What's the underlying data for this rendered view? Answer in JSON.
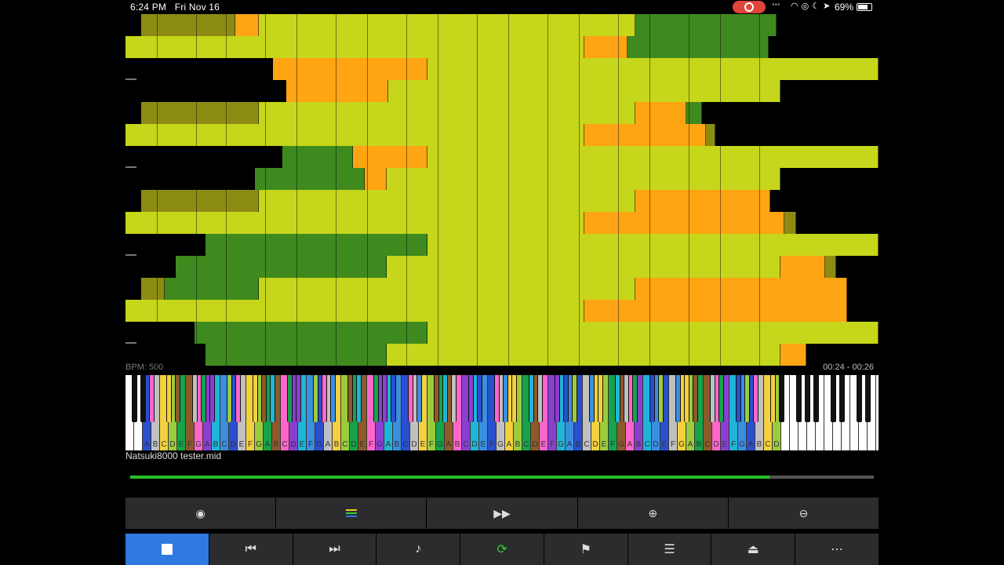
{
  "status_bar": {
    "time": "6:24 PM",
    "date": "Fri Nov 16",
    "battery_percent": "69%",
    "icons": [
      "screen-record-icon",
      "wifi-icon",
      "lock-rotation-icon",
      "moon-icon",
      "location-icon",
      "battery-icon"
    ]
  },
  "roll": {
    "bpm_label": "BPM: 500",
    "time_range": "00:24 - 00:26"
  },
  "piano": {
    "note_letters": [
      "C",
      "D",
      "E",
      "F",
      "G",
      "A",
      "B"
    ],
    "highlight_colors": [
      "#1fb5d8",
      "#3a8fe0",
      "#2a4fd0",
      "#c0c0c0",
      "#f4d03f",
      "#9ccc3c",
      "#16a34a",
      "#8d5a2a",
      "#ff66cc",
      "#8b3fd0"
    ]
  },
  "file": {
    "name": "Natsuki8000 tester.mid"
  },
  "playback": {
    "progress": 0.86
  },
  "toolbar_top": {
    "buttons": [
      {
        "name": "view-eye-button",
        "icon": "eye-icon",
        "glyph": "◉"
      },
      {
        "name": "tracks-color-button",
        "icon": "colored-bars-icon",
        "glyph": ""
      },
      {
        "name": "fast-forward-button",
        "icon": "fast-forward-icon",
        "glyph": "⏩"
      },
      {
        "name": "zoom-in-button",
        "icon": "zoom-in-icon",
        "glyph": "⊕"
      },
      {
        "name": "zoom-out-button",
        "icon": "zoom-out-icon",
        "glyph": "⊖"
      }
    ]
  },
  "toolbar_bottom": {
    "buttons": [
      {
        "name": "stop-button",
        "icon": "stop-icon",
        "glyph": ""
      },
      {
        "name": "previous-button",
        "icon": "skip-back-icon",
        "glyph": "⏮"
      },
      {
        "name": "next-button",
        "icon": "skip-forward-icon",
        "glyph": "⏭"
      },
      {
        "name": "metronome-button",
        "icon": "metronome-icon",
        "glyph": "♪"
      },
      {
        "name": "loop-button",
        "icon": "loop-icon",
        "glyph": "⟳"
      },
      {
        "name": "marker-flag-button",
        "icon": "flag-icon",
        "glyph": "⚑"
      },
      {
        "name": "track-list-button",
        "icon": "list-icon",
        "glyph": "☰"
      },
      {
        "name": "eject-button",
        "icon": "eject-icon",
        "glyph": "⏏"
      },
      {
        "name": "more-button",
        "icon": "more-icon",
        "glyph": "⋯"
      }
    ]
  },
  "colors": {
    "note_yellow": "#c6d61a",
    "note_green": "#3f8a1e",
    "note_orange": "#ffa412",
    "note_olive": "#8c8c14",
    "progress_green": "#27c02a",
    "active_blue": "#2f7ae0"
  }
}
